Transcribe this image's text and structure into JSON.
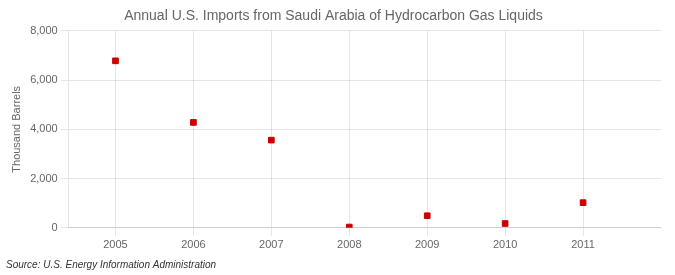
{
  "chart_data": {
    "type": "scatter",
    "title": "Annual U.S. Imports from Saudi Arabia of Hydrocarbon Gas Liquids",
    "ylabel": "Thousand Barrels",
    "annotations": [
      "Source: U.S. Energy Information Administration"
    ],
    "x": [
      2005,
      2006,
      2007,
      2008,
      2009,
      2010,
      2011
    ],
    "values": [
      6780,
      4280,
      3560,
      30,
      490,
      175,
      1020
    ],
    "color": "#cc0000",
    "marker": "square",
    "xlim": [
      2004.4,
      2012.0
    ],
    "xticks": [
      2005,
      2006,
      2007,
      2008,
      2009,
      2010,
      2011
    ],
    "ylim": [
      0,
      8000
    ],
    "yticks": [
      0,
      {
        "value": 2000,
        "label": "2,000"
      },
      {
        "value": 4000,
        "label": "4,000"
      },
      {
        "value": 6000,
        "label": "6,000"
      },
      {
        "value": 8000,
        "label": "8,000"
      }
    ],
    "grid": true
  }
}
